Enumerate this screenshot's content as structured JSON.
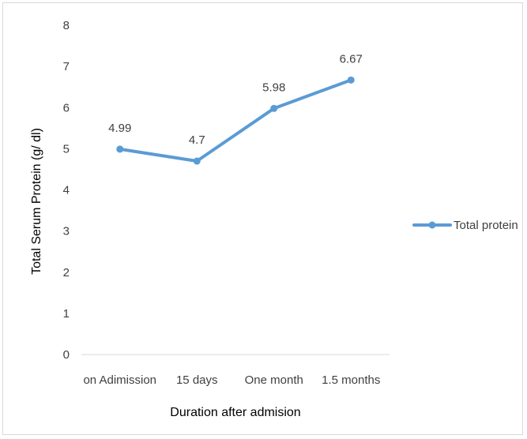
{
  "chart_data": {
    "type": "line",
    "categories": [
      "on Adimission",
      "15 days",
      "One month",
      "1.5 months"
    ],
    "series": [
      {
        "name": "Total protein",
        "values": [
          4.99,
          4.7,
          5.98,
          6.67
        ],
        "data_labels": [
          "4.99",
          "4.7",
          "5.98",
          "6.67"
        ],
        "color": "#5b9bd5"
      }
    ],
    "xlabel": "Duration after admision",
    "ylabel": "Total Serum Protein (g/ dl)",
    "ylim": [
      0,
      8
    ],
    "yticks": [
      "0",
      "1",
      "2",
      "3",
      "4",
      "5",
      "6",
      "7",
      "8"
    ],
    "grid": false,
    "legend_position": "right"
  }
}
